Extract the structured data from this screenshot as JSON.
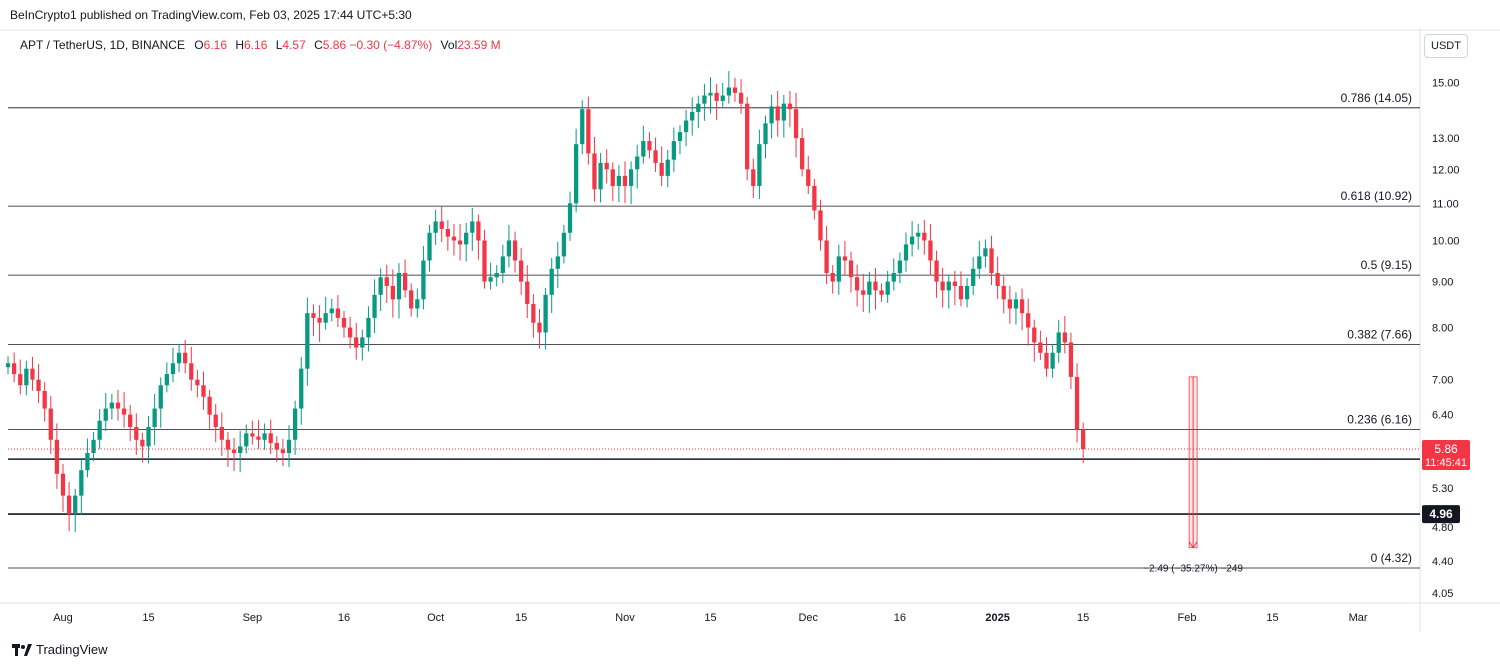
{
  "publisher": "BeInCrypto1 published on TradingView.com, Feb 03, 2025 17:44 UTC+5:30",
  "legend": {
    "symbol": "APT / TetherUS, 1D, BINANCE",
    "o_label": "O",
    "o_value": "6.16",
    "h_label": "H",
    "h_value": "6.16",
    "l_label": "L",
    "l_value": "4.57",
    "c_label": "C",
    "c_value": "5.86 −0.30 (−4.87%)",
    "vol_label": "Vol",
    "vol_value": "23.59 M"
  },
  "currency": "USDT",
  "footer": {
    "brand": "TradingView",
    "icon": "tradingview-logo-icon"
  },
  "colors": {
    "up": "#089981",
    "down": "#f23645",
    "fib": "#131722",
    "grid": "#f0f3fa"
  },
  "chart_data": {
    "type": "candlestick",
    "scale": "log",
    "ylim": [
      4.0,
      15.8
    ],
    "y_ticks": [
      "15.00",
      "13.00",
      "12.00",
      "11.00",
      "10.00",
      "9.00",
      "8.00",
      "7.00",
      "6.40",
      "5.30",
      "4.80",
      "4.40",
      "4.05"
    ],
    "x_ticks": [
      {
        "label": "Aug",
        "date": "2024-08-01"
      },
      {
        "label": "15",
        "date": "2024-08-15"
      },
      {
        "label": "Sep",
        "date": "2024-09-01"
      },
      {
        "label": "16",
        "date": "2024-09-16"
      },
      {
        "label": "Oct",
        "date": "2024-10-01"
      },
      {
        "label": "15",
        "date": "2024-10-15"
      },
      {
        "label": "Nov",
        "date": "2024-11-01"
      },
      {
        "label": "15",
        "date": "2024-11-15"
      },
      {
        "label": "Dec",
        "date": "2024-12-01"
      },
      {
        "label": "16",
        "date": "2024-12-16"
      },
      {
        "label": "2025",
        "date": "2025-01-01"
      },
      {
        "label": "15",
        "date": "2025-01-15"
      },
      {
        "label": "Feb",
        "date": "2025-02-01"
      },
      {
        "label": "15",
        "date": "2025-02-15"
      },
      {
        "label": "Mar",
        "date": "2025-03-01"
      }
    ],
    "fib_levels": [
      {
        "label": "0.786 (14.05)",
        "value": 14.05
      },
      {
        "label": "0.618 (10.92)",
        "value": 10.92
      },
      {
        "label": "0.5 (9.15)",
        "value": 9.15
      },
      {
        "label": "0.382 (7.66)",
        "value": 7.66
      },
      {
        "label": "0.236 (6.16)",
        "value": 6.16
      },
      {
        "label": "0 (4.32)",
        "value": 4.32
      }
    ],
    "support_lines": [
      {
        "label": "5.71",
        "value": 5.71
      },
      {
        "label": "4.96",
        "value": 4.96
      }
    ],
    "last_price": {
      "price": "5.86",
      "countdown": "11:45:41",
      "value": 5.86
    },
    "measure": {
      "label": "−2.49 (−35.27%) −249",
      "date": "2025-02-02",
      "from": 7.05,
      "to": 4.55
    },
    "date_range": [
      "2024-07-23",
      "2025-02-03"
    ],
    "closes": [
      7.3,
      7.1,
      6.9,
      7.2,
      7.0,
      6.8,
      6.5,
      6.0,
      5.5,
      5.2,
      4.96,
      5.2,
      5.55,
      5.8,
      6.0,
      6.3,
      6.5,
      6.6,
      6.5,
      6.4,
      6.2,
      6.0,
      5.9,
      6.2,
      6.5,
      6.9,
      7.1,
      7.3,
      7.5,
      7.3,
      7.0,
      6.9,
      6.7,
      6.4,
      6.2,
      6.0,
      5.85,
      5.8,
      5.9,
      6.1,
      6.05,
      6.0,
      6.1,
      5.95,
      5.85,
      5.8,
      6.0,
      6.5,
      7.2,
      8.3,
      8.2,
      8.1,
      8.3,
      8.4,
      8.2,
      8.0,
      7.8,
      7.6,
      7.8,
      8.2,
      8.7,
      9.1,
      8.9,
      8.6,
      9.2,
      8.8,
      8.4,
      8.6,
      9.5,
      10.2,
      10.5,
      10.3,
      10.1,
      10.0,
      9.9,
      10.2,
      10.5,
      10.0,
      9.0,
      9.1,
      9.2,
      9.6,
      10.0,
      9.5,
      9.0,
      8.5,
      8.1,
      7.9,
      8.7,
      9.3,
      9.6,
      10.2,
      11.0,
      12.8,
      14.0,
      12.5,
      11.4,
      12.2,
      12.0,
      11.5,
      11.8,
      11.5,
      12.0,
      12.4,
      12.9,
      12.6,
      12.2,
      11.8,
      12.3,
      12.9,
      13.2,
      13.6,
      13.9,
      14.2,
      14.5,
      14.6,
      14.3,
      14.5,
      14.8,
      14.6,
      14.2,
      12.0,
      11.5,
      12.8,
      13.5,
      14.1,
      13.6,
      14.2,
      14.0,
      13.0,
      12.0,
      11.5,
      10.8,
      10.0,
      9.2,
      9.0,
      9.6,
      9.5,
      9.1,
      8.8,
      8.7,
      9.0,
      8.8,
      8.7,
      9.0,
      9.2,
      9.5,
      9.9,
      10.1,
      10.2,
      10.0,
      9.5,
      9.0,
      8.8,
      9.0,
      8.9,
      8.6,
      8.9,
      9.3,
      9.6,
      9.8,
      9.2,
      8.9,
      8.6,
      8.4,
      8.6,
      8.3,
      8.0,
      7.7,
      7.5,
      7.2,
      7.5,
      7.9,
      7.7,
      7.05,
      6.16,
      5.86
    ]
  }
}
